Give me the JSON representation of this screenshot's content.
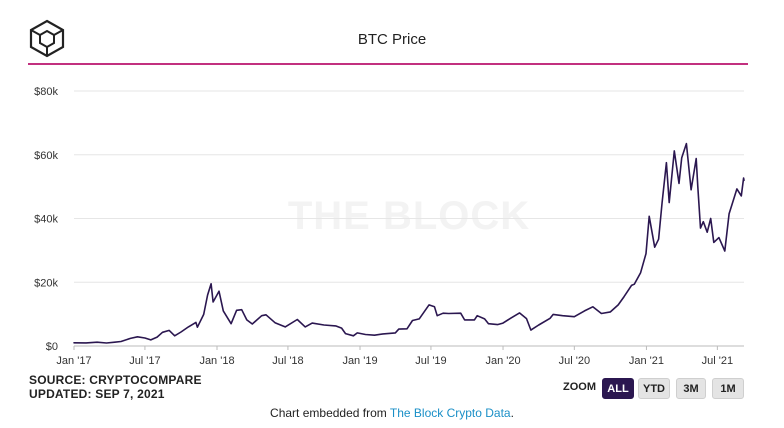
{
  "header": {
    "logo_icon": "the-block-cube-logo",
    "title": "BTC Price",
    "accent_color": "#c2307f"
  },
  "watermark": "THE BLOCK",
  "footer": {
    "source": "SOURCE: CRYPTOCOMPARE",
    "updated": "UPDATED: SEP 7, 2021",
    "zoom_label": "ZOOM",
    "zoom_buttons": [
      {
        "label": "ALL",
        "active": true
      },
      {
        "label": "YTD",
        "active": false
      },
      {
        "label": "3M",
        "active": false
      },
      {
        "label": "1M",
        "active": false
      }
    ],
    "embed_prefix": "Chart embedded from ",
    "embed_link": "The Block Crypto Data",
    "embed_suffix": "."
  },
  "chart_data": {
    "type": "line",
    "title": "BTC Price",
    "xlabel": "",
    "ylabel": "",
    "line_color": "#2b1750",
    "grid": true,
    "x_range": [
      "2017-01-01",
      "2021-09-07"
    ],
    "ylim": [
      0,
      80000
    ],
    "y_ticks": [
      {
        "value": 0,
        "label": "$0"
      },
      {
        "value": 20000,
        "label": "$20k"
      },
      {
        "value": 40000,
        "label": "$40k"
      },
      {
        "value": 60000,
        "label": "$60k"
      },
      {
        "value": 80000,
        "label": "$80k"
      }
    ],
    "x_ticks": [
      {
        "date": "2017-01-01",
        "label": "Jan '17"
      },
      {
        "date": "2017-07-01",
        "label": "Jul '17"
      },
      {
        "date": "2018-01-01",
        "label": "Jan '18"
      },
      {
        "date": "2018-07-01",
        "label": "Jul '18"
      },
      {
        "date": "2019-01-01",
        "label": "Jan '19"
      },
      {
        "date": "2019-07-01",
        "label": "Jul '19"
      },
      {
        "date": "2020-01-01",
        "label": "Jan '20"
      },
      {
        "date": "2020-07-01",
        "label": "Jul '20"
      },
      {
        "date": "2021-01-01",
        "label": "Jan '21"
      },
      {
        "date": "2021-07-01",
        "label": "Jul '21"
      }
    ],
    "series": [
      {
        "points": [
          [
            "2017-01-01",
            1000
          ],
          [
            "2017-02-01",
            970
          ],
          [
            "2017-03-01",
            1200
          ],
          [
            "2017-03-25",
            940
          ],
          [
            "2017-04-15",
            1200
          ],
          [
            "2017-05-01",
            1400
          ],
          [
            "2017-05-25",
            2400
          ],
          [
            "2017-06-12",
            2900
          ],
          [
            "2017-07-01",
            2500
          ],
          [
            "2017-07-16",
            1900
          ],
          [
            "2017-08-01",
            2800
          ],
          [
            "2017-08-15",
            4300
          ],
          [
            "2017-09-01",
            4900
          ],
          [
            "2017-09-15",
            3200
          ],
          [
            "2017-10-01",
            4400
          ],
          [
            "2017-10-20",
            6000
          ],
          [
            "2017-11-08",
            7400
          ],
          [
            "2017-11-12",
            5900
          ],
          [
            "2017-11-28",
            9900
          ],
          [
            "2017-12-08",
            16000
          ],
          [
            "2017-12-17",
            19500
          ],
          [
            "2017-12-22",
            13800
          ],
          [
            "2018-01-06",
            17200
          ],
          [
            "2018-01-17",
            11000
          ],
          [
            "2018-02-06",
            7000
          ],
          [
            "2018-02-20",
            11200
          ],
          [
            "2018-03-05",
            11400
          ],
          [
            "2018-03-18",
            8200
          ],
          [
            "2018-04-01",
            6900
          ],
          [
            "2018-04-25",
            9500
          ],
          [
            "2018-05-06",
            9800
          ],
          [
            "2018-05-29",
            7300
          ],
          [
            "2018-06-24",
            6000
          ],
          [
            "2018-07-25",
            8300
          ],
          [
            "2018-08-14",
            6000
          ],
          [
            "2018-09-01",
            7200
          ],
          [
            "2018-10-01",
            6600
          ],
          [
            "2018-10-31",
            6300
          ],
          [
            "2018-11-15",
            5600
          ],
          [
            "2018-11-25",
            3900
          ],
          [
            "2018-12-15",
            3200
          ],
          [
            "2018-12-25",
            4100
          ],
          [
            "2019-01-15",
            3600
          ],
          [
            "2019-02-07",
            3400
          ],
          [
            "2019-03-01",
            3800
          ],
          [
            "2019-04-01",
            4100
          ],
          [
            "2019-04-10",
            5300
          ],
          [
            "2019-05-01",
            5400
          ],
          [
            "2019-05-15",
            8000
          ],
          [
            "2019-06-01",
            8500
          ],
          [
            "2019-06-26",
            12900
          ],
          [
            "2019-07-10",
            12300
          ],
          [
            "2019-07-17",
            9500
          ],
          [
            "2019-08-01",
            10300
          ],
          [
            "2019-08-15",
            10200
          ],
          [
            "2019-09-15",
            10300
          ],
          [
            "2019-09-25",
            8200
          ],
          [
            "2019-10-20",
            8200
          ],
          [
            "2019-10-27",
            9500
          ],
          [
            "2019-11-15",
            8500
          ],
          [
            "2019-11-25",
            7000
          ],
          [
            "2019-12-18",
            6700
          ],
          [
            "2020-01-01",
            7200
          ],
          [
            "2020-01-20",
            8700
          ],
          [
            "2020-02-12",
            10400
          ],
          [
            "2020-03-01",
            8600
          ],
          [
            "2020-03-12",
            5000
          ],
          [
            "2020-03-16",
            5300
          ],
          [
            "2020-04-01",
            6600
          ],
          [
            "2020-04-30",
            8700
          ],
          [
            "2020-05-08",
            9900
          ],
          [
            "2020-06-01",
            9500
          ],
          [
            "2020-07-01",
            9200
          ],
          [
            "2020-07-27",
            11000
          ],
          [
            "2020-08-17",
            12300
          ],
          [
            "2020-09-08",
            10200
          ],
          [
            "2020-10-01",
            10700
          ],
          [
            "2020-10-21",
            12900
          ],
          [
            "2020-11-05",
            15500
          ],
          [
            "2020-11-24",
            19000
          ],
          [
            "2020-12-01",
            19400
          ],
          [
            "2020-12-17",
            23000
          ],
          [
            "2020-12-31",
            29000
          ],
          [
            "2021-01-08",
            40700
          ],
          [
            "2021-01-22",
            31000
          ],
          [
            "2021-02-01",
            33500
          ],
          [
            "2021-02-10",
            45000
          ],
          [
            "2021-02-21",
            57500
          ],
          [
            "2021-02-28",
            45000
          ],
          [
            "2021-03-13",
            61200
          ],
          [
            "2021-03-25",
            51000
          ],
          [
            "2021-04-01",
            59000
          ],
          [
            "2021-04-13",
            63500
          ],
          [
            "2021-04-25",
            49000
          ],
          [
            "2021-05-08",
            58800
          ],
          [
            "2021-05-12",
            50000
          ],
          [
            "2021-05-19",
            37000
          ],
          [
            "2021-05-26",
            39000
          ],
          [
            "2021-06-05",
            35700
          ],
          [
            "2021-06-14",
            40000
          ],
          [
            "2021-06-22",
            32500
          ],
          [
            "2021-07-05",
            34000
          ],
          [
            "2021-07-20",
            29800
          ],
          [
            "2021-07-31",
            41500
          ],
          [
            "2021-08-14",
            47000
          ],
          [
            "2021-08-20",
            49300
          ],
          [
            "2021-08-31",
            47100
          ],
          [
            "2021-09-06",
            52700
          ],
          [
            "2021-09-07",
            52000
          ]
        ]
      }
    ]
  }
}
